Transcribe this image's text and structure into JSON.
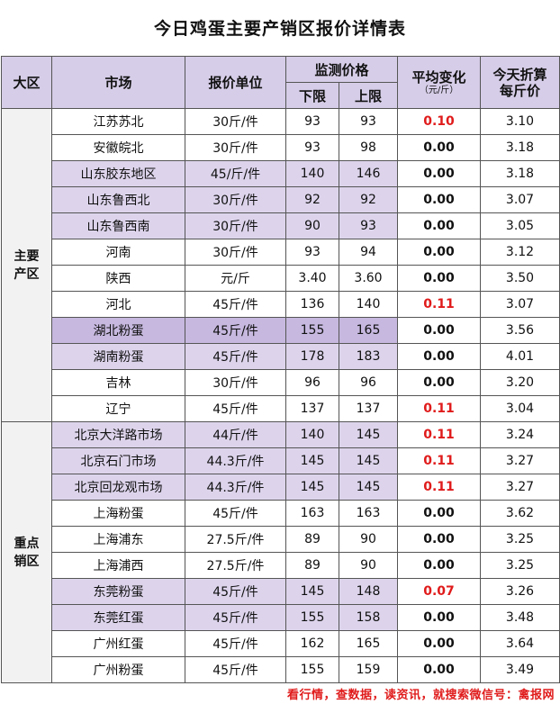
{
  "title": "今日鸡蛋主要产销区报价详情表",
  "header": {
    "region": "大区",
    "market": "市场",
    "unit": "报价单位",
    "monitor": "监测价格",
    "lower": "下限",
    "upper": "上限",
    "avg_change": "平均变化",
    "avg_change_unit": "（元/斤）",
    "today_price_l1": "今天折算",
    "today_price_l2": "每斤价"
  },
  "groups": [
    {
      "region_l1": "主要",
      "region_l2": "产区",
      "rows": [
        {
          "market": "江苏苏北",
          "unit": "30斤/件",
          "lower": "93",
          "upper": "93",
          "change": "0.10",
          "price": "3.10",
          "highlight": false,
          "changed": true
        },
        {
          "market": "安徽皖北",
          "unit": "30斤/件",
          "lower": "93",
          "upper": "98",
          "change": "0.00",
          "price": "3.18",
          "highlight": false,
          "changed": false
        },
        {
          "market": "山东胶东地区",
          "unit": "45/斤/件",
          "lower": "140",
          "upper": "146",
          "change": "0.00",
          "price": "3.18",
          "highlight": true,
          "changed": false
        },
        {
          "market": "山东鲁西北",
          "unit": "30斤/件",
          "lower": "92",
          "upper": "92",
          "change": "0.00",
          "price": "3.07",
          "highlight": true,
          "changed": false
        },
        {
          "market": "山东鲁西南",
          "unit": "30斤/件",
          "lower": "90",
          "upper": "93",
          "change": "0.00",
          "price": "3.05",
          "highlight": true,
          "changed": false
        },
        {
          "market": "河南",
          "unit": "30斤/件",
          "lower": "93",
          "upper": "94",
          "change": "0.00",
          "price": "3.12",
          "highlight": false,
          "changed": false
        },
        {
          "market": "陕西",
          "unit": "元/斤",
          "lower": "3.40",
          "upper": "3.60",
          "change": "0.00",
          "price": "3.50",
          "highlight": false,
          "changed": false
        },
        {
          "market": "河北",
          "unit": "45斤/件",
          "lower": "136",
          "upper": "140",
          "change": "0.11",
          "price": "3.07",
          "highlight": false,
          "changed": true
        },
        {
          "market": "湖北粉蛋",
          "unit": "45斤/件",
          "lower": "155",
          "upper": "165",
          "change": "0.00",
          "price": "3.56",
          "highlight": true,
          "deep": true,
          "changed": false
        },
        {
          "market": "湖南粉蛋",
          "unit": "45斤/件",
          "lower": "178",
          "upper": "183",
          "change": "0.00",
          "price": "4.01",
          "highlight": true,
          "changed": false
        },
        {
          "market": "吉林",
          "unit": "30斤/件",
          "lower": "96",
          "upper": "96",
          "change": "0.00",
          "price": "3.20",
          "highlight": false,
          "changed": false
        },
        {
          "market": "辽宁",
          "unit": "45斤/件",
          "lower": "137",
          "upper": "137",
          "change": "0.11",
          "price": "3.04",
          "highlight": false,
          "changed": true
        }
      ]
    },
    {
      "region_l1": "重点",
      "region_l2": "销区",
      "rows": [
        {
          "market": "北京大洋路市场",
          "unit": "44斤/件",
          "lower": "140",
          "upper": "145",
          "change": "0.11",
          "price": "3.24",
          "highlight": true,
          "changed": true
        },
        {
          "market": "北京石门市场",
          "unit": "44.3斤/件",
          "lower": "145",
          "upper": "145",
          "change": "0.11",
          "price": "3.27",
          "highlight": true,
          "changed": true
        },
        {
          "market": "北京回龙观市场",
          "unit": "44.3斤/件",
          "lower": "145",
          "upper": "145",
          "change": "0.11",
          "price": "3.27",
          "highlight": true,
          "changed": true
        },
        {
          "market": "上海粉蛋",
          "unit": "45斤/件",
          "lower": "163",
          "upper": "163",
          "change": "0.00",
          "price": "3.62",
          "highlight": false,
          "changed": false
        },
        {
          "market": "上海浦东",
          "unit": "27.5斤/件",
          "lower": "89",
          "upper": "90",
          "change": "0.00",
          "price": "3.25",
          "highlight": false,
          "changed": false
        },
        {
          "market": "上海浦西",
          "unit": "27.5斤/件",
          "lower": "89",
          "upper": "90",
          "change": "0.00",
          "price": "3.25",
          "highlight": false,
          "changed": false
        },
        {
          "market": "东莞粉蛋",
          "unit": "45斤/件",
          "lower": "145",
          "upper": "148",
          "change": "0.07",
          "price": "3.26",
          "highlight": true,
          "changed": true
        },
        {
          "market": "东莞红蛋",
          "unit": "45斤/件",
          "lower": "155",
          "upper": "158",
          "change": "0.00",
          "price": "3.48",
          "highlight": true,
          "changed": false
        },
        {
          "market": "广州红蛋",
          "unit": "45斤/件",
          "lower": "162",
          "upper": "165",
          "change": "0.00",
          "price": "3.64",
          "highlight": false,
          "changed": false
        },
        {
          "market": "广州粉蛋",
          "unit": "45斤/件",
          "lower": "155",
          "upper": "159",
          "change": "0.00",
          "price": "3.49",
          "highlight": false,
          "changed": false
        }
      ]
    }
  ],
  "footer": "看行情，查数据，读资讯，就搜索微信号：禽报网",
  "colors": {
    "header_bg": "#d6cde8",
    "highlight_bg": "#ddd4ec",
    "deep_bg": "#c6b8df",
    "change_red": "#e01b1b"
  }
}
